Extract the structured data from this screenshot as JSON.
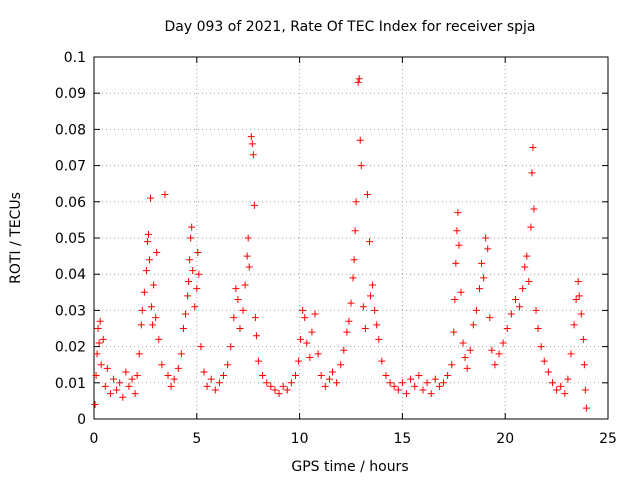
{
  "chart_data": {
    "type": "scatter",
    "title": "Day 093 of 2021, Rate Of TEC Index for receiver spja",
    "xlabel": "GPS time / hours",
    "ylabel": "ROTI / TECUs",
    "xlim": [
      0,
      25
    ],
    "ylim": [
      0,
      0.1
    ],
    "xticks": [
      0,
      5,
      10,
      15,
      20,
      25
    ],
    "yticks": [
      0,
      0.01,
      0.02,
      0.03,
      0.04,
      0.05,
      0.06,
      0.07,
      0.08,
      0.09,
      0.1
    ],
    "xtick_labels": [
      "0",
      "5",
      "10",
      "15",
      "20",
      "25"
    ],
    "ytick_labels": [
      "0",
      "0.01",
      "0.02",
      "0.03",
      "0.04",
      "0.05",
      "0.06",
      "0.07",
      "0.08",
      "0.09",
      "0.1"
    ],
    "grid": true,
    "marker": "+",
    "color": "#ff0000",
    "series": [
      {
        "name": "ROTI",
        "points": [
          [
            0.05,
            0.004
          ],
          [
            0.1,
            0.012
          ],
          [
            0.15,
            0.018
          ],
          [
            0.2,
            0.025
          ],
          [
            0.25,
            0.021
          ],
          [
            0.3,
            0.027
          ],
          [
            0.35,
            0.015
          ],
          [
            0.45,
            0.022
          ],
          [
            0.55,
            0.009
          ],
          [
            0.65,
            0.014
          ],
          [
            0.8,
            0.007
          ],
          [
            0.95,
            0.011
          ],
          [
            1.1,
            0.008
          ],
          [
            1.25,
            0.01
          ],
          [
            1.4,
            0.006
          ],
          [
            1.55,
            0.013
          ],
          [
            1.7,
            0.009
          ],
          [
            1.85,
            0.011
          ],
          [
            2.0,
            0.007
          ],
          [
            2.1,
            0.012
          ],
          [
            2.2,
            0.018
          ],
          [
            2.3,
            0.026
          ],
          [
            2.35,
            0.03
          ],
          [
            2.45,
            0.035
          ],
          [
            2.55,
            0.041
          ],
          [
            2.6,
            0.049
          ],
          [
            2.65,
            0.051
          ],
          [
            2.7,
            0.044
          ],
          [
            2.75,
            0.061
          ],
          [
            2.8,
            0.031
          ],
          [
            2.85,
            0.026
          ],
          [
            2.9,
            0.037
          ],
          [
            3.0,
            0.028
          ],
          [
            3.05,
            0.046
          ],
          [
            3.15,
            0.022
          ],
          [
            3.3,
            0.015
          ],
          [
            3.45,
            0.062
          ],
          [
            3.6,
            0.012
          ],
          [
            3.75,
            0.009
          ],
          [
            3.9,
            0.011
          ],
          [
            4.1,
            0.014
          ],
          [
            4.25,
            0.018
          ],
          [
            4.35,
            0.025
          ],
          [
            4.45,
            0.029
          ],
          [
            4.55,
            0.034
          ],
          [
            4.6,
            0.038
          ],
          [
            4.65,
            0.044
          ],
          [
            4.7,
            0.05
          ],
          [
            4.75,
            0.053
          ],
          [
            4.8,
            0.041
          ],
          [
            4.9,
            0.031
          ],
          [
            5.0,
            0.036
          ],
          [
            5.05,
            0.046
          ],
          [
            5.1,
            0.04
          ],
          [
            5.2,
            0.02
          ],
          [
            5.35,
            0.013
          ],
          [
            5.5,
            0.009
          ],
          [
            5.7,
            0.011
          ],
          [
            5.9,
            0.008
          ],
          [
            6.1,
            0.01
          ],
          [
            6.3,
            0.012
          ],
          [
            6.5,
            0.015
          ],
          [
            6.65,
            0.02
          ],
          [
            6.8,
            0.028
          ],
          [
            6.9,
            0.036
          ],
          [
            7.0,
            0.033
          ],
          [
            7.1,
            0.025
          ],
          [
            7.25,
            0.03
          ],
          [
            7.35,
            0.037
          ],
          [
            7.45,
            0.045
          ],
          [
            7.5,
            0.05
          ],
          [
            7.55,
            0.042
          ],
          [
            7.65,
            0.078
          ],
          [
            7.7,
            0.076
          ],
          [
            7.75,
            0.073
          ],
          [
            7.8,
            0.059
          ],
          [
            7.85,
            0.028
          ],
          [
            7.9,
            0.023
          ],
          [
            8.0,
            0.016
          ],
          [
            8.2,
            0.012
          ],
          [
            8.4,
            0.01
          ],
          [
            8.6,
            0.009
          ],
          [
            8.8,
            0.008
          ],
          [
            9.0,
            0.007
          ],
          [
            9.2,
            0.009
          ],
          [
            9.4,
            0.008
          ],
          [
            9.6,
            0.01
          ],
          [
            9.8,
            0.012
          ],
          [
            9.95,
            0.016
          ],
          [
            10.05,
            0.022
          ],
          [
            10.15,
            0.03
          ],
          [
            10.25,
            0.028
          ],
          [
            10.35,
            0.021
          ],
          [
            10.5,
            0.017
          ],
          [
            10.6,
            0.024
          ],
          [
            10.75,
            0.029
          ],
          [
            10.9,
            0.018
          ],
          [
            11.05,
            0.012
          ],
          [
            11.25,
            0.009
          ],
          [
            11.45,
            0.011
          ],
          [
            11.6,
            0.013
          ],
          [
            11.8,
            0.01
          ],
          [
            12.0,
            0.015
          ],
          [
            12.15,
            0.019
          ],
          [
            12.3,
            0.024
          ],
          [
            12.4,
            0.027
          ],
          [
            12.5,
            0.032
          ],
          [
            12.6,
            0.039
          ],
          [
            12.65,
            0.044
          ],
          [
            12.7,
            0.052
          ],
          [
            12.75,
            0.06
          ],
          [
            12.85,
            0.093
          ],
          [
            12.9,
            0.094
          ],
          [
            12.95,
            0.077
          ],
          [
            13.0,
            0.07
          ],
          [
            13.1,
            0.031
          ],
          [
            13.2,
            0.025
          ],
          [
            13.3,
            0.062
          ],
          [
            13.4,
            0.049
          ],
          [
            13.45,
            0.034
          ],
          [
            13.55,
            0.037
          ],
          [
            13.65,
            0.03
          ],
          [
            13.75,
            0.026
          ],
          [
            13.85,
            0.022
          ],
          [
            14.0,
            0.016
          ],
          [
            14.2,
            0.012
          ],
          [
            14.4,
            0.01
          ],
          [
            14.6,
            0.009
          ],
          [
            14.8,
            0.008
          ],
          [
            15.0,
            0.01
          ],
          [
            15.2,
            0.007
          ],
          [
            15.4,
            0.011
          ],
          [
            15.6,
            0.009
          ],
          [
            15.8,
            0.012
          ],
          [
            16.0,
            0.008
          ],
          [
            16.2,
            0.01
          ],
          [
            16.4,
            0.007
          ],
          [
            16.6,
            0.011
          ],
          [
            16.8,
            0.009
          ],
          [
            17.0,
            0.01
          ],
          [
            17.2,
            0.012
          ],
          [
            17.4,
            0.015
          ],
          [
            17.5,
            0.024
          ],
          [
            17.55,
            0.033
          ],
          [
            17.6,
            0.043
          ],
          [
            17.65,
            0.052
          ],
          [
            17.7,
            0.057
          ],
          [
            17.75,
            0.048
          ],
          [
            17.85,
            0.035
          ],
          [
            17.95,
            0.021
          ],
          [
            18.05,
            0.017
          ],
          [
            18.15,
            0.014
          ],
          [
            18.3,
            0.019
          ],
          [
            18.45,
            0.026
          ],
          [
            18.6,
            0.03
          ],
          [
            18.75,
            0.036
          ],
          [
            18.85,
            0.043
          ],
          [
            18.95,
            0.039
          ],
          [
            19.05,
            0.05
          ],
          [
            19.15,
            0.047
          ],
          [
            19.25,
            0.028
          ],
          [
            19.35,
            0.019
          ],
          [
            19.5,
            0.015
          ],
          [
            19.7,
            0.018
          ],
          [
            19.9,
            0.021
          ],
          [
            20.1,
            0.025
          ],
          [
            20.3,
            0.029
          ],
          [
            20.5,
            0.033
          ],
          [
            20.7,
            0.031
          ],
          [
            20.85,
            0.036
          ],
          [
            20.95,
            0.042
          ],
          [
            21.05,
            0.045
          ],
          [
            21.15,
            0.038
          ],
          [
            21.25,
            0.053
          ],
          [
            21.3,
            0.068
          ],
          [
            21.35,
            0.075
          ],
          [
            21.4,
            0.058
          ],
          [
            21.5,
            0.03
          ],
          [
            21.6,
            0.025
          ],
          [
            21.75,
            0.02
          ],
          [
            21.9,
            0.016
          ],
          [
            22.1,
            0.013
          ],
          [
            22.3,
            0.01
          ],
          [
            22.5,
            0.008
          ],
          [
            22.7,
            0.009
          ],
          [
            22.9,
            0.007
          ],
          [
            23.05,
            0.011
          ],
          [
            23.2,
            0.018
          ],
          [
            23.35,
            0.026
          ],
          [
            23.45,
            0.033
          ],
          [
            23.55,
            0.038
          ],
          [
            23.6,
            0.034
          ],
          [
            23.7,
            0.029
          ],
          [
            23.8,
            0.022
          ],
          [
            23.85,
            0.015
          ],
          [
            23.9,
            0.008
          ],
          [
            23.95,
            0.003
          ]
        ]
      }
    ]
  }
}
